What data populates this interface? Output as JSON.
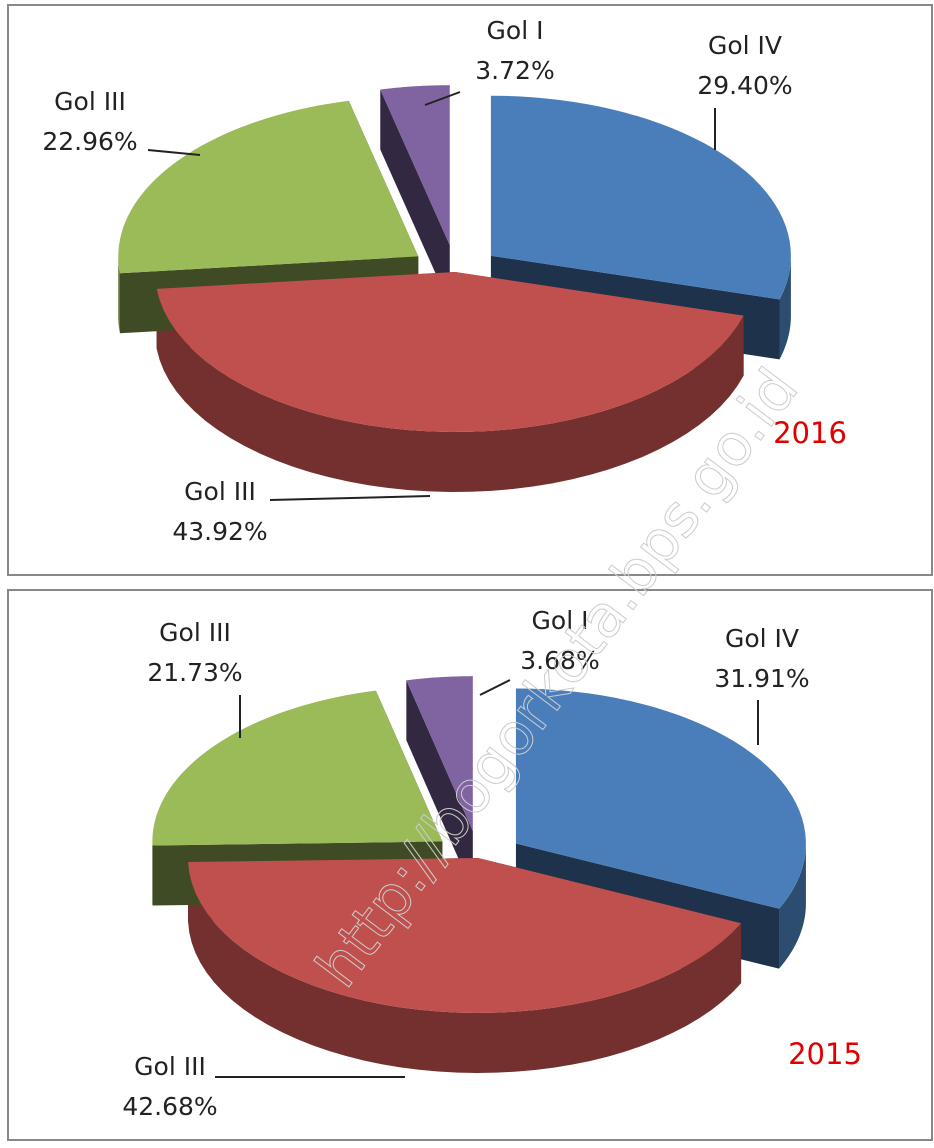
{
  "chart_data": [
    {
      "type": "pie3d",
      "annotation": "2016",
      "categories": [
        "Gol IV",
        "Gol III",
        "Gol III",
        "Gol I"
      ],
      "values": [
        29.4,
        43.92,
        22.96,
        3.72
      ],
      "value_labels": [
        "29.40%",
        "43.92%",
        "22.96%",
        "3.72%"
      ],
      "colors": [
        "#4a7ebb",
        "#c0504d",
        "#9bbb59",
        "#8064a2"
      ]
    },
    {
      "type": "pie3d",
      "annotation": "2015",
      "categories": [
        "Gol IV",
        "Gol III",
        "Gol III",
        "Gol I"
      ],
      "values": [
        31.91,
        42.68,
        21.73,
        3.68
      ],
      "value_labels": [
        "31.91%",
        "42.68%",
        "21.73%",
        "3.68%"
      ],
      "colors": [
        "#4a7ebb",
        "#c0504d",
        "#9bbb59",
        "#8064a2"
      ]
    }
  ],
  "watermark": "http://bogorkota.bps.go.id"
}
